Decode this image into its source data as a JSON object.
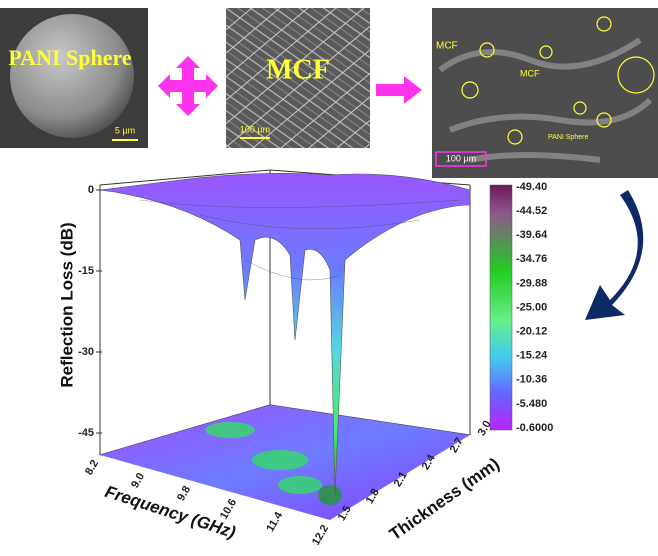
{
  "panels": [
    {
      "label": "PANI Sphere",
      "scale": "5 µm"
    },
    {
      "label": "MCF",
      "scale": "100 µm"
    },
    {
      "labels": [
        "MCF",
        "MCF",
        "PANI Sphere"
      ],
      "scale": "100 µm"
    }
  ],
  "plot": {
    "z_label": "Reflection Loss (dB)",
    "x_label": "Frequency (GHz)",
    "y_label": "Thickness (mm)",
    "z_ticks": [
      "0",
      "-15",
      "-30",
      "-45"
    ],
    "x_ticks": [
      "8.2",
      "9.0",
      "9.8",
      "10.6",
      "11.4",
      "12.2"
    ],
    "y_ticks": [
      "1.5",
      "1.8",
      "2.1",
      "2.4",
      "2.7",
      "3.0"
    ],
    "colorbar": [
      "-49.40",
      "-44.52",
      "-39.64",
      "-34.76",
      "-29.88",
      "-25.00",
      "-20.12",
      "-15.24",
      "-10.36",
      "-5.480",
      "-0.6000"
    ]
  }
}
